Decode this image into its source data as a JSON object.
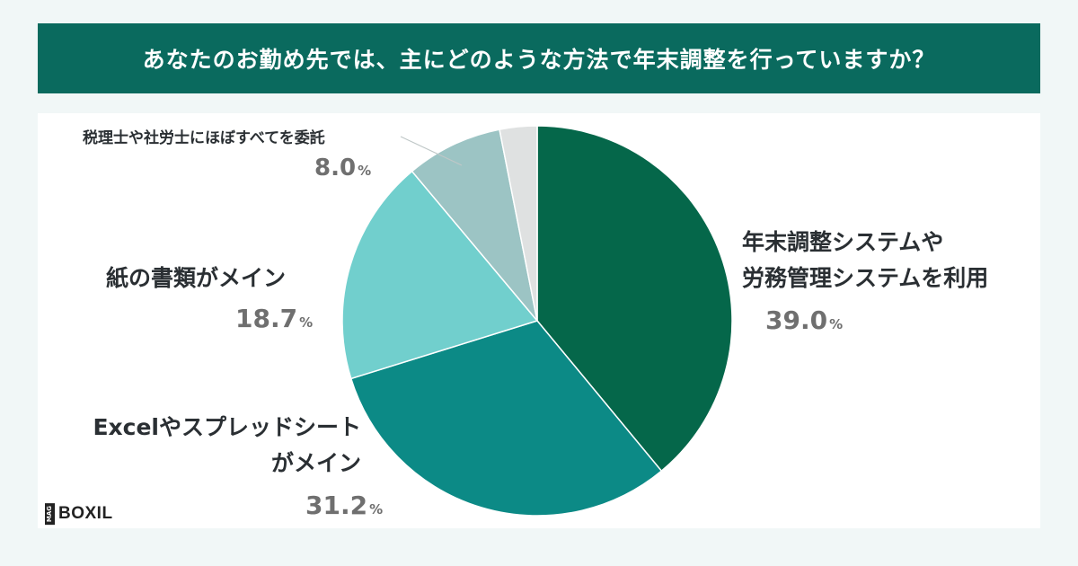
{
  "header": {
    "title": "あなたのお勤め先では、主にどのような方法で年末調整を行っていますか？"
  },
  "chart_data": {
    "type": "pie",
    "start_angle_deg": 0,
    "direction": "clockwise",
    "slices": [
      {
        "label_lines": [
          "年末調整システムや",
          "労務管理システムを利用"
        ],
        "value": 39.0,
        "value_text": "39.0",
        "unit": "%",
        "color": "#05674a"
      },
      {
        "label_lines": [
          "Excelやスプレッドシート",
          "がメイン"
        ],
        "value": 31.2,
        "value_text": "31.2",
        "unit": "%",
        "color": "#0c8a86"
      },
      {
        "label_lines": [
          "紙の書類がメイン"
        ],
        "value": 18.7,
        "value_text": "18.7",
        "unit": "%",
        "color": "#71cfcd"
      },
      {
        "label_lines": [
          "税理士や社労士にほぼすべてを委託"
        ],
        "value": 8.0,
        "value_text": "8.0",
        "unit": "%",
        "color": "#9cc4c4"
      },
      {
        "label_lines": [],
        "value": 3.1,
        "value_text": "",
        "unit": "",
        "color": "#dfe1e1"
      }
    ]
  },
  "brand": {
    "mag": "MAG",
    "name": "BOXIL"
  }
}
